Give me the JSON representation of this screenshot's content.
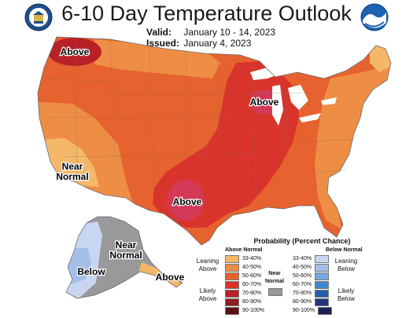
{
  "header": {
    "title": "6-10 Day Temperature Outlook",
    "valid_label": "Valid:",
    "valid_value": "January 10 - 14, 2023",
    "issued_label": "Issued:",
    "issued_value": "January 4, 2023"
  },
  "logos": {
    "left": "doc-seal-icon",
    "right": "noaa-logo-icon"
  },
  "map_labels": {
    "above_nw": "Above",
    "above_gl": "Above",
    "above_tx": "Above",
    "near_normal_sw_1": "Near",
    "near_normal_sw_2": "Normal",
    "near_normal_ak_1": "Near",
    "near_normal_ak_2": "Normal",
    "below_ak": "Below",
    "above_ak": "Above"
  },
  "legend": {
    "title": "Probability (Percent Chance)",
    "above_head": "Above Normal",
    "below_head": "Below Normal",
    "near_normal_1": "Near",
    "near_normal_2": "Normal",
    "leaning_above_1": "Leaning",
    "leaning_above_2": "Above",
    "likely_above_1": "Likely",
    "likely_above_2": "Above",
    "leaning_below_1": "Leaning",
    "leaning_below_2": "Below",
    "likely_below_1": "Likely",
    "likely_below_2": "Below",
    "above": [
      {
        "label": "33-40%",
        "color": "#f5b868"
      },
      {
        "label": "40-50%",
        "color": "#ee8e44"
      },
      {
        "label": "50-60%",
        "color": "#e6622e"
      },
      {
        "label": "60-70%",
        "color": "#d9342b"
      },
      {
        "label": "70-80%",
        "color": "#b82128"
      },
      {
        "label": "80-90%",
        "color": "#8f1d22"
      },
      {
        "label": "90-100%",
        "color": "#5e0f14"
      }
    ],
    "below": [
      {
        "label": "33-40%",
        "color": "#c9d6f2"
      },
      {
        "label": "40-50%",
        "color": "#a4c0ea"
      },
      {
        "label": "50-60%",
        "color": "#73a9e3"
      },
      {
        "label": "60-70%",
        "color": "#3f86cf"
      },
      {
        "label": "70-80%",
        "color": "#245fae"
      },
      {
        "label": "80-90%",
        "color": "#21357f"
      },
      {
        "label": "90-100%",
        "color": "#1c1f55"
      }
    ],
    "near_color": "#999999"
  }
}
